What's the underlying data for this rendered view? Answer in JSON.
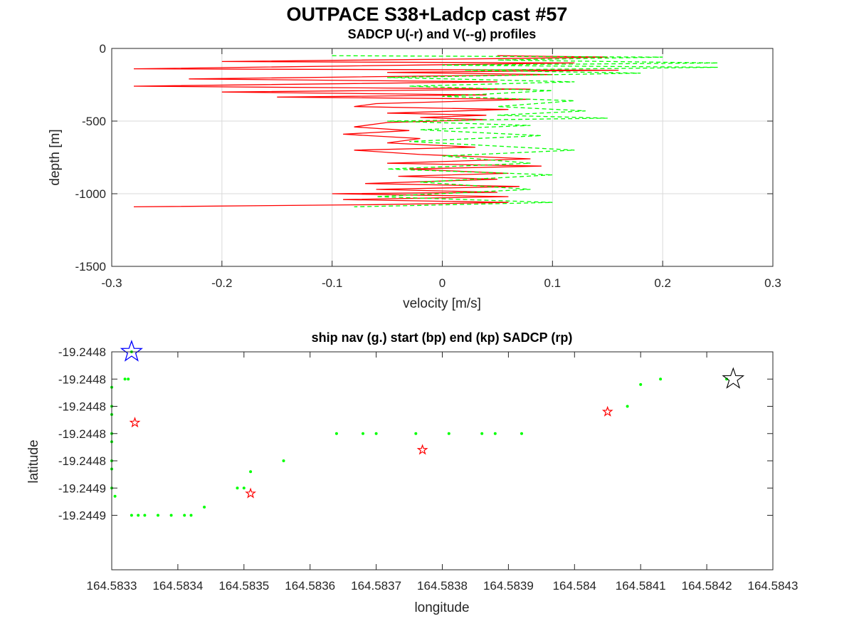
{
  "figure": {
    "title": "OUTPACE S38+Ladcp cast #57"
  },
  "colors": {
    "u_profile": "#ff0000",
    "v_profile": "#00ff00",
    "ship_nav": "#00ff00",
    "sadcp_points": "#ff0000",
    "start_marker": "#0000ff",
    "end_marker": "#000000"
  },
  "chart_data": [
    {
      "type": "line",
      "title": "SADCP U(-r) and V(--g) profiles",
      "xlabel": "velocity [m/s]",
      "ylabel": "depth [m]",
      "xlim": [
        -0.3,
        0.3
      ],
      "ylim": [
        -1500,
        0
      ],
      "xticks": [
        -0.3,
        -0.2,
        -0.1,
        0,
        0.1,
        0.2,
        0.3
      ],
      "xtick_labels": [
        "-0.3",
        "-0.2",
        "-0.1",
        "0",
        "0.1",
        "0.2",
        "0.3"
      ],
      "yticks": [
        0,
        -500,
        -1000,
        -1500
      ],
      "ytick_labels": [
        "0",
        "-500",
        "-1000",
        "-1500"
      ],
      "grid": true,
      "series": [
        {
          "style": "solid-red",
          "points": [
            [
              0.05,
              -50
            ],
            [
              0.15,
              -60
            ],
            [
              0.05,
              -70
            ],
            [
              -0.2,
              -90
            ],
            [
              0.12,
              -100
            ],
            [
              -0.28,
              -140
            ],
            [
              0.16,
              -150
            ],
            [
              -0.05,
              -165
            ],
            [
              0.1,
              -180
            ],
            [
              -0.23,
              -210
            ],
            [
              0.05,
              -230
            ],
            [
              -0.28,
              -260
            ],
            [
              0.08,
              -280
            ],
            [
              -0.2,
              -300
            ],
            [
              0.04,
              -320
            ],
            [
              -0.15,
              -335
            ],
            [
              0.08,
              -350
            ],
            [
              -0.06,
              -380
            ],
            [
              -0.08,
              -400
            ],
            [
              0.06,
              -420
            ],
            [
              -0.05,
              -445
            ],
            [
              0.04,
              -460
            ],
            [
              -0.02,
              -475
            ],
            [
              0.04,
              -490
            ],
            [
              -0.05,
              -510
            ],
            [
              -0.08,
              -540
            ],
            [
              -0.03,
              -565
            ],
            [
              -0.09,
              -590
            ],
            [
              -0.02,
              -620
            ],
            [
              -0.05,
              -650
            ],
            [
              0.03,
              -680
            ],
            [
              -0.08,
              -700
            ],
            [
              -0.02,
              -730
            ],
            [
              0.08,
              -760
            ],
            [
              -0.05,
              -790
            ],
            [
              0.09,
              -810
            ],
            [
              -0.03,
              -830
            ],
            [
              0.06,
              -860
            ],
            [
              -0.04,
              -880
            ],
            [
              0.05,
              -900
            ],
            [
              -0.07,
              -930
            ],
            [
              0.07,
              -950
            ],
            [
              -0.06,
              -970
            ],
            [
              0.05,
              -990
            ],
            [
              -0.1,
              -1000
            ],
            [
              0.06,
              -1020
            ],
            [
              -0.09,
              -1040
            ],
            [
              0.06,
              -1060
            ],
            [
              -0.06,
              -1075
            ],
            [
              -0.28,
              -1090
            ]
          ]
        },
        {
          "style": "dashed-green",
          "points": [
            [
              -0.1,
              -50
            ],
            [
              0.2,
              -60
            ],
            [
              0.05,
              -80
            ],
            [
              0.25,
              -100
            ],
            [
              0.0,
              -115
            ],
            [
              0.25,
              -130
            ],
            [
              0.02,
              -150
            ],
            [
              0.18,
              -170
            ],
            [
              -0.05,
              -200
            ],
            [
              0.12,
              -230
            ],
            [
              -0.03,
              -260
            ],
            [
              0.1,
              -290
            ],
            [
              0.0,
              -330
            ],
            [
              0.12,
              -360
            ],
            [
              0.05,
              -400
            ],
            [
              0.13,
              -430
            ],
            [
              0.05,
              -460
            ],
            [
              0.15,
              -480
            ],
            [
              -0.05,
              -500
            ],
            [
              0.08,
              -530
            ],
            [
              -0.02,
              -560
            ],
            [
              0.09,
              -600
            ],
            [
              -0.03,
              -640
            ],
            [
              0.12,
              -700
            ],
            [
              0.0,
              -740
            ],
            [
              0.08,
              -790
            ],
            [
              -0.05,
              -830
            ],
            [
              0.1,
              -870
            ],
            [
              -0.02,
              -920
            ],
            [
              0.08,
              -970
            ],
            [
              -0.06,
              -1020
            ],
            [
              0.1,
              -1060
            ],
            [
              -0.08,
              -1090
            ]
          ]
        }
      ]
    },
    {
      "type": "scatter",
      "title": "ship nav (g.) start (bp) end (kp) SADCP (rp)",
      "xlabel": "longitude",
      "ylabel": "latitude",
      "xlim": [
        164.5833,
        164.5843
      ],
      "ylim": [
        -19.24486,
        -19.24478
      ],
      "xticks": [
        164.5833,
        164.5834,
        164.5835,
        164.5836,
        164.5837,
        164.5838,
        164.5839,
        164.584,
        164.5841,
        164.5842,
        164.5843
      ],
      "xtick_labels": [
        "164.5833",
        "164.5834",
        "164.5835",
        "164.5836",
        "164.5837",
        "164.5838",
        "164.5839",
        "164.584",
        "164.5841",
        "164.5842",
        "164.5843"
      ],
      "yticks": [
        -19.24478,
        -19.24479,
        -19.2448,
        -19.24481,
        -19.24482,
        -19.24483,
        -19.24484
      ],
      "ytick_labels": [
        "-19.2448",
        "-19.2448",
        "-19.2448",
        "-19.2448",
        "-19.2448",
        "-19.2449",
        "-19.2449"
      ],
      "grid": false,
      "series": [
        {
          "style": "green-dots",
          "points": [
            [
              164.58333,
              -19.24478
            ],
            [
              164.58332,
              -19.24479
            ],
            [
              164.583325,
              -19.24479
            ],
            [
              164.5833,
              -19.244793
            ],
            [
              164.5833,
              -19.2448
            ],
            [
              164.5833,
              -19.244803
            ],
            [
              164.5833,
              -19.24481
            ],
            [
              164.5833,
              -19.244813
            ],
            [
              164.5833,
              -19.24482
            ],
            [
              164.5833,
              -19.244823
            ],
            [
              164.5833,
              -19.24483
            ],
            [
              164.583305,
              -19.244833
            ],
            [
              164.58333,
              -19.24484
            ],
            [
              164.58334,
              -19.24484
            ],
            [
              164.58335,
              -19.24484
            ],
            [
              164.58337,
              -19.24484
            ],
            [
              164.58339,
              -19.24484
            ],
            [
              164.58341,
              -19.24484
            ],
            [
              164.58342,
              -19.24484
            ],
            [
              164.58344,
              -19.244837
            ],
            [
              164.58349,
              -19.24483
            ],
            [
              164.5835,
              -19.24483
            ],
            [
              164.58351,
              -19.244824
            ],
            [
              164.58356,
              -19.24482
            ],
            [
              164.58364,
              -19.24481
            ],
            [
              164.58368,
              -19.24481
            ],
            [
              164.5837,
              -19.24481
            ],
            [
              164.58376,
              -19.24481
            ],
            [
              164.58381,
              -19.24481
            ],
            [
              164.58386,
              -19.24481
            ],
            [
              164.58388,
              -19.24481
            ],
            [
              164.58392,
              -19.24481
            ],
            [
              164.58408,
              -19.2448
            ],
            [
              164.5841,
              -19.244792
            ],
            [
              164.58413,
              -19.24479
            ],
            [
              164.58423,
              -19.24479
            ]
          ]
        },
        {
          "style": "red-stars",
          "points": [
            [
              164.583335,
              -19.244806
            ],
            [
              164.58351,
              -19.244832
            ],
            [
              164.58377,
              -19.244816
            ],
            [
              164.58405,
              -19.244802
            ]
          ]
        },
        {
          "style": "start-star-blue",
          "points": [
            [
              164.58333,
              -19.24478
            ]
          ]
        },
        {
          "style": "end-star-black",
          "points": [
            [
              164.58424,
              -19.24479
            ]
          ]
        }
      ]
    }
  ]
}
